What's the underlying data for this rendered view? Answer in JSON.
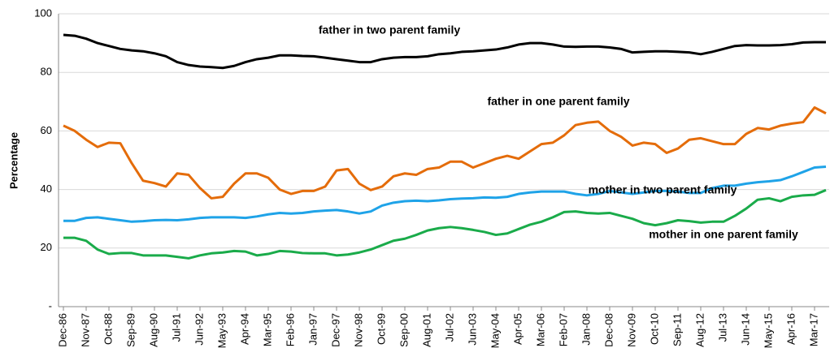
{
  "chart_data": {
    "type": "line",
    "y_label": "Percentage",
    "categories": [
      "Dec-86",
      null,
      "Nov-87",
      null,
      "Oct-88",
      null,
      "Sep-89",
      null,
      "Aug-90",
      null,
      "Jul-91",
      null,
      "Jun-92",
      null,
      "May-93",
      null,
      "Apr-94",
      null,
      "Mar-95",
      null,
      "Feb-96",
      null,
      "Jan-97",
      null,
      "Dec-97",
      null,
      "Nov-98",
      null,
      "Oct-99",
      null,
      "Sep-00",
      null,
      "Aug-01",
      null,
      "Jul-02",
      null,
      "Jun-03",
      null,
      "May-04",
      null,
      "Apr-05",
      null,
      "Mar-06",
      null,
      "Feb-07",
      null,
      "Jan-08",
      null,
      "Dec-08",
      null,
      "Nov-09",
      null,
      "Oct-10",
      null,
      "Sep-11",
      null,
      "Aug-12",
      null,
      "Jul-13",
      null,
      "Jun-14",
      null,
      "May-15",
      null,
      "Apr-16",
      null,
      "Mar-17",
      null
    ],
    "series": [
      {
        "name": "father in two parent family",
        "color": "#000000",
        "values": [
          92.8,
          92.5,
          91.5,
          90,
          89,
          88,
          87.5,
          87.2,
          86.5,
          85.5,
          83.5,
          82.5,
          82,
          81.8,
          81.5,
          82.2,
          83.5,
          84.5,
          85,
          85.8,
          85.8,
          85.6,
          85.5,
          85,
          84.5,
          84,
          83.5,
          83.5,
          84.5,
          85,
          85.2,
          85.2,
          85.5,
          86.2,
          86.5,
          87,
          87.2,
          87.5,
          87.8,
          88.5,
          89.5,
          90,
          90,
          89.5,
          88.8,
          88.7,
          88.8,
          88.8,
          88.5,
          88,
          86.8,
          87,
          87.2,
          87.2,
          87,
          86.8,
          86.2,
          87,
          88,
          89,
          89.3,
          89.2,
          89.2,
          89.3,
          89.6,
          90.2,
          90.3,
          90.3
        ]
      },
      {
        "name": "father in one parent family",
        "color": "#e46c0a",
        "values": [
          61.8,
          60,
          57,
          54.5,
          56,
          55.8,
          49,
          43,
          42.2,
          41,
          45.5,
          45,
          40.5,
          37,
          37.5,
          42,
          45.5,
          45.5,
          44,
          40,
          38.5,
          39.5,
          39.5,
          41,
          46.5,
          47,
          42,
          39.8,
          41,
          44.5,
          45.5,
          45,
          47,
          47.5,
          49.5,
          49.5,
          47.5,
          49,
          50.5,
          51.5,
          50.5,
          53,
          55.5,
          56,
          58.5,
          62,
          62.8,
          63.2,
          60,
          58,
          55,
          56,
          55.5,
          52.5,
          54,
          57,
          57.5,
          56.5,
          55.5,
          55.5,
          59,
          61,
          60.5,
          61.8,
          62.5,
          63,
          68,
          66
        ]
      },
      {
        "name": "mother in two parent family",
        "color": "#1fa3e8",
        "values": [
          29.3,
          29.3,
          30.3,
          30.5,
          30,
          29.5,
          29,
          29.2,
          29.5,
          29.6,
          29.5,
          29.8,
          30.3,
          30.5,
          30.5,
          30.5,
          30.3,
          30.8,
          31.5,
          32,
          31.8,
          32,
          32.5,
          32.8,
          33,
          32.5,
          31.8,
          32.5,
          34.5,
          35.5,
          36,
          36.2,
          36,
          36.3,
          36.7,
          36.9,
          37,
          37.3,
          37.2,
          37.5,
          38.5,
          39,
          39.3,
          39.3,
          39.3,
          38.5,
          38,
          38.5,
          39.5,
          39,
          38.5,
          39,
          39.5,
          39.5,
          39.3,
          38.8,
          38.8,
          40.5,
          41.3,
          41.3,
          42,
          42.5,
          42.8,
          43.2,
          44.5,
          46,
          47.5,
          47.8
        ]
      },
      {
        "name": "mother in one parent family",
        "color": "#1aab4a",
        "values": [
          23.5,
          23.5,
          22.5,
          19.5,
          18,
          18.3,
          18.3,
          17.5,
          17.5,
          17.5,
          17,
          16.5,
          17.5,
          18.2,
          18.5,
          19,
          18.8,
          17.5,
          18,
          19,
          18.8,
          18.3,
          18.2,
          18.2,
          17.5,
          17.8,
          18.5,
          19.5,
          21,
          22.5,
          23.2,
          24.5,
          26,
          26.8,
          27.2,
          26.8,
          26.2,
          25.5,
          24.5,
          25,
          26.5,
          28,
          29,
          30.5,
          32.3,
          32.5,
          32,
          31.8,
          32,
          31,
          30,
          28.5,
          27.8,
          28.5,
          29.5,
          29.2,
          28.7,
          29,
          29,
          31,
          33.5,
          36.5,
          37,
          36,
          37.5,
          38,
          38.2,
          39.8
        ]
      }
    ],
    "ylim": [
      0,
      100
    ],
    "yticks": [
      {
        "value": 0,
        "label": "-"
      },
      20,
      40,
      60,
      80,
      100
    ],
    "grid": true
  }
}
